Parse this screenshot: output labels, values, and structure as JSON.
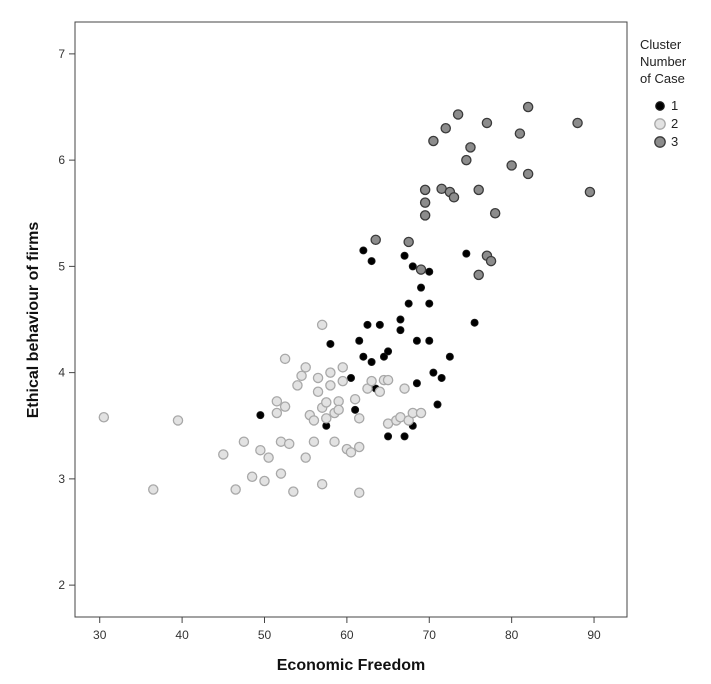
{
  "chart_data": {
    "type": "scatter",
    "title": "",
    "xlabel": "Economic Freedom",
    "ylabel": "Ethical behaviour of firms",
    "xlim": [
      27,
      94
    ],
    "ylim": [
      1.7,
      7.3
    ],
    "x_ticks": [
      30,
      40,
      50,
      60,
      70,
      80,
      90
    ],
    "y_ticks": [
      2,
      3,
      4,
      5,
      6,
      7
    ],
    "grid": false,
    "legend": {
      "title_lines": [
        "Cluster",
        "Number",
        "of Case"
      ],
      "placement": "right"
    },
    "series": [
      {
        "name": "1",
        "color": "#000000",
        "stroke": "#1a1a1a",
        "points": [
          [
            49.5,
            3.6
          ],
          [
            57.5,
            3.5
          ],
          [
            58,
            4.27
          ],
          [
            60.5,
            3.95
          ],
          [
            61,
            3.65
          ],
          [
            61.5,
            4.3
          ],
          [
            62,
            4.15
          ],
          [
            62.5,
            4.45
          ],
          [
            63,
            4.1
          ],
          [
            63.5,
            3.85
          ],
          [
            64,
            4.45
          ],
          [
            64.5,
            4.15
          ],
          [
            65,
            4.2
          ],
          [
            65,
            3.4
          ],
          [
            66.5,
            4.5
          ],
          [
            66.5,
            4.4
          ],
          [
            67,
            3.4
          ],
          [
            68,
            3.5
          ],
          [
            68.5,
            3.9
          ],
          [
            68.5,
            4.3
          ],
          [
            69,
            4.8
          ],
          [
            67.5,
            4.65
          ],
          [
            68,
            5.0
          ],
          [
            67,
            5.1
          ],
          [
            70,
            4.3
          ],
          [
            70,
            4.65
          ],
          [
            70.5,
            4.0
          ],
          [
            71,
            3.7
          ],
          [
            71.5,
            3.95
          ],
          [
            72.5,
            4.15
          ],
          [
            70,
            4.95
          ],
          [
            62,
            5.15
          ],
          [
            63,
            5.05
          ],
          [
            74.5,
            5.12
          ],
          [
            75.5,
            4.47
          ]
        ]
      },
      {
        "name": "2",
        "color": "#e2e2e2",
        "stroke": "#a8a8a8",
        "points": [
          [
            30.5,
            3.58
          ],
          [
            36.5,
            2.9
          ],
          [
            39.5,
            3.55
          ],
          [
            45,
            3.23
          ],
          [
            46.5,
            2.9
          ],
          [
            47.5,
            3.35
          ],
          [
            48.5,
            3.02
          ],
          [
            49.5,
            3.27
          ],
          [
            50,
            2.98
          ],
          [
            50.5,
            3.2
          ],
          [
            51.5,
            3.73
          ],
          [
            51.5,
            3.62
          ],
          [
            52,
            3.05
          ],
          [
            52,
            3.35
          ],
          [
            52.5,
            3.68
          ],
          [
            52.5,
            4.13
          ],
          [
            53,
            3.33
          ],
          [
            53.5,
            2.88
          ],
          [
            54,
            3.88
          ],
          [
            54.5,
            3.97
          ],
          [
            55,
            4.05
          ],
          [
            55,
            3.2
          ],
          [
            55.5,
            3.6
          ],
          [
            56,
            3.35
          ],
          [
            56,
            3.55
          ],
          [
            56.5,
            3.82
          ],
          [
            56.5,
            3.95
          ],
          [
            57,
            4.45
          ],
          [
            57,
            3.67
          ],
          [
            57,
            2.95
          ],
          [
            57.5,
            3.72
          ],
          [
            57.5,
            3.57
          ],
          [
            58,
            3.88
          ],
          [
            58,
            4.0
          ],
          [
            58.5,
            3.62
          ],
          [
            58.5,
            3.35
          ],
          [
            59,
            3.73
          ],
          [
            59,
            3.65
          ],
          [
            59.5,
            3.92
          ],
          [
            59.5,
            4.05
          ],
          [
            60,
            3.28
          ],
          [
            60.5,
            3.25
          ],
          [
            61,
            3.75
          ],
          [
            61.5,
            3.57
          ],
          [
            61.5,
            3.3
          ],
          [
            61.5,
            2.87
          ],
          [
            62.5,
            3.85
          ],
          [
            63,
            3.92
          ],
          [
            64,
            3.82
          ],
          [
            64.5,
            3.93
          ],
          [
            65,
            3.93
          ],
          [
            65,
            3.52
          ],
          [
            66,
            3.55
          ],
          [
            66.5,
            3.58
          ],
          [
            67,
            3.85
          ],
          [
            67.5,
            3.55
          ],
          [
            68,
            3.62
          ],
          [
            69,
            3.62
          ]
        ]
      },
      {
        "name": "3",
        "color": "#8c8c8c",
        "stroke": "#3a3a3a",
        "points": [
          [
            63.5,
            5.25
          ],
          [
            67.5,
            5.23
          ],
          [
            69,
            4.97
          ],
          [
            69.5,
            5.72
          ],
          [
            69.5,
            5.6
          ],
          [
            69.5,
            5.48
          ],
          [
            70.5,
            6.18
          ],
          [
            71.5,
            5.73
          ],
          [
            72,
            6.3
          ],
          [
            72.5,
            5.7
          ],
          [
            73,
            5.65
          ],
          [
            73.5,
            6.43
          ],
          [
            74.5,
            6.0
          ],
          [
            75,
            6.12
          ],
          [
            76,
            4.92
          ],
          [
            76,
            5.72
          ],
          [
            77,
            6.35
          ],
          [
            77,
            5.1
          ],
          [
            77.5,
            5.05
          ],
          [
            78,
            5.5
          ],
          [
            80,
            5.95
          ],
          [
            81,
            6.25
          ],
          [
            82,
            6.5
          ],
          [
            82,
            5.87
          ],
          [
            88,
            6.35
          ],
          [
            89.5,
            5.7
          ]
        ]
      }
    ]
  }
}
